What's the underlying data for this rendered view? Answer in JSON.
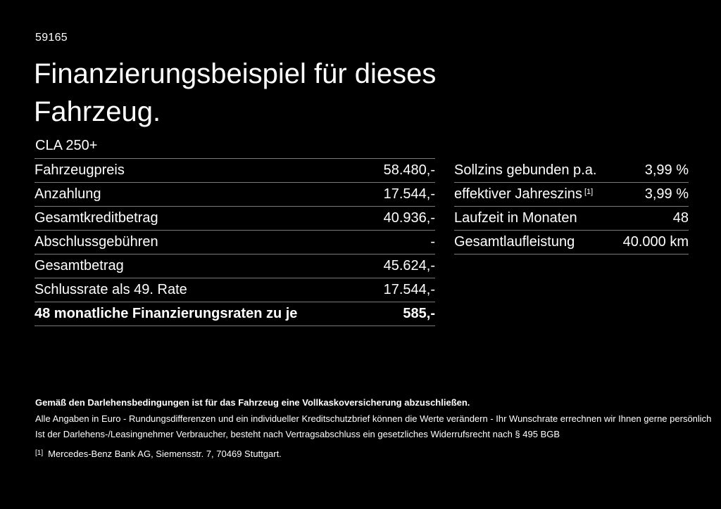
{
  "theme": {
    "background": "#000000",
    "text": "#ffffff",
    "divider": "#7a7a7a"
  },
  "header": {
    "doc_number": "59165",
    "title": "Finanzierungsbeispiel für dieses Fahrzeug.",
    "vehicle_model": "CLA 250+"
  },
  "finance_table": {
    "rows": [
      {
        "label": "Fahrzeugpreis",
        "value": "58.480,-",
        "bold": false
      },
      {
        "label": "Anzahlung",
        "value": "17.544,-",
        "bold": false
      },
      {
        "label": "Gesamtkreditbetrag",
        "value": "40.936,-",
        "bold": false
      },
      {
        "label": "Abschlussgebühren",
        "value": "-",
        "bold": false
      },
      {
        "label": "Gesamtbetrag",
        "value": "45.624,-",
        "bold": false
      },
      {
        "label": "Schlussrate als 49. Rate",
        "value": "17.544,-",
        "bold": false
      },
      {
        "label": "48 monatliche Finanzierungsraten zu je",
        "value": "585,-",
        "bold": true
      }
    ]
  },
  "conditions_table": {
    "rows": [
      {
        "label": "Sollzins gebunden p.a.",
        "sup": "",
        "value": "3,99 %",
        "bold": false
      },
      {
        "label": "effektiver Jahreszins",
        "sup": "[1]",
        "value": "3,99 %",
        "bold": false
      },
      {
        "label": "Laufzeit in Monaten",
        "sup": "",
        "value": "48",
        "bold": false
      },
      {
        "label": "Gesamtlaufleistung",
        "sup": "",
        "value": "40.000 km",
        "bold": false
      }
    ]
  },
  "footer": {
    "insurance_note": "Gemäß den Darlehensbedingungen ist für das Fahrzeug eine Vollkaskoversicherung abzuschließen.",
    "note_line1": "Alle Angaben in Euro - Rundungsdifferenzen und ein individueller Kreditschutzbrief können die Werte verändern - Ihr Wunschrate errechnen wir Ihnen gerne persönlich",
    "note_line2": "Ist der Darlehens-/Leasingnehmer Verbraucher, besteht nach Vertragsabschluss ein gesetzliches Widerrufsrecht nach § 495 BGB",
    "footnote_marker": "[1]",
    "footnote_text": "Mercedes-Benz Bank AG, Siemensstr. 7, 70469 Stuttgart."
  }
}
